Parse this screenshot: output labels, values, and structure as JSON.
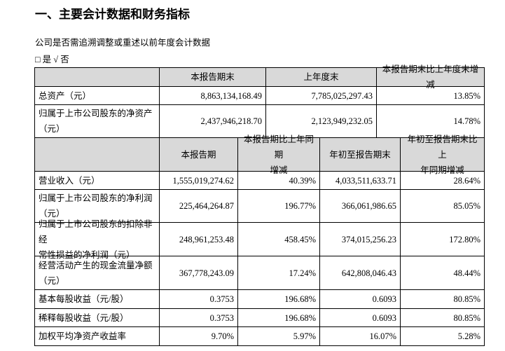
{
  "header": {
    "title": "一、主要会计数据和财务指标",
    "subtitle": "公司是否需追溯调整或重述以前年度会计数据",
    "option": "□ 是 √ 否"
  },
  "table": {
    "top_header": [
      "本报告期末",
      "上年度末",
      "本报告期末比上年度末增减"
    ],
    "top_rows": [
      [
        "总资产（元）",
        "8,863,134,168.49",
        "7,785,025,297.43",
        "13.85%"
      ],
      [
        "归属于上市公司股东的净资产\n（元）",
        "2,437,946,218.70",
        "2,123,949,232.05",
        "14.78%"
      ]
    ],
    "bottom_header": [
      "本报告期",
      "本报告期比上年同期\n增减",
      "年初至报告期末",
      "年初至报告期末比上\n年同期增减"
    ],
    "bottom_rows": [
      [
        "营业收入（元）",
        "1,555,019,274.62",
        "40.39%",
        "4,033,511,633.71",
        "28.64%"
      ],
      [
        "归属于上市公司股东的净利润\n（元）",
        "225,464,264.87",
        "196.77%",
        "366,061,986.65",
        "85.05%"
      ],
      [
        "归属于上市公司股东的扣除非经\n常性损益的净利润（元）",
        "248,961,253.48",
        "458.45%",
        "374,015,256.23",
        "172.80%"
      ],
      [
        "经营活动产生的现金流量净额\n（元）",
        "367,778,243.09",
        "17.24%",
        "642,808,046.43",
        "48.44%"
      ],
      [
        "基本每股收益（元/股）",
        "0.3753",
        "196.68%",
        "0.6093",
        "80.85%"
      ],
      [
        "稀释每股收益（元/股）",
        "0.3753",
        "196.68%",
        "0.6093",
        "80.85%"
      ],
      [
        "加权平均净资产收益率",
        "9.70%",
        "5.97%",
        "16.07%",
        "5.28%"
      ]
    ]
  }
}
